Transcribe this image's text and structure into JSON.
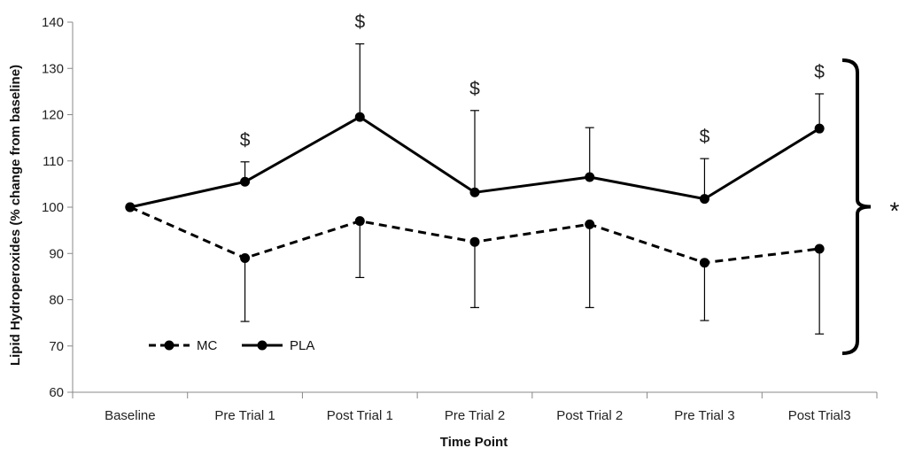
{
  "chart_data": {
    "type": "line",
    "title": "",
    "xlabel": "Time Point",
    "ylabel": "Lipid Hydroperoxides (% change from baseline)",
    "ylim": [
      60,
      140
    ],
    "y_ticks": [
      60,
      70,
      80,
      90,
      100,
      110,
      120,
      130,
      140
    ],
    "categories": [
      "Baseline",
      "Pre Trial 1",
      "Post Trial 1",
      "Pre Trial 2",
      "Post Trial 2",
      "Pre Trial 3",
      "Post Trial3"
    ],
    "grid": false,
    "legend_position": "bottom-left",
    "series": [
      {
        "name": "MC",
        "line_style": "dashed",
        "color": "#000000",
        "values": [
          100,
          89,
          97,
          92.5,
          96.3,
          88,
          91
        ],
        "error_low": [
          0,
          13.7,
          12.2,
          14.2,
          18,
          12.5,
          18.4
        ],
        "error_high": [
          0,
          0,
          0,
          0,
          0,
          0,
          0
        ]
      },
      {
        "name": "PLA",
        "line_style": "solid",
        "color": "#000000",
        "values": [
          100,
          105.5,
          119.5,
          103.2,
          106.5,
          101.8,
          117
        ],
        "error_low": [
          0,
          0,
          0,
          0,
          0,
          0,
          0
        ],
        "error_high": [
          0,
          4.3,
          15.8,
          17.7,
          10.7,
          8.7,
          7.5
        ]
      }
    ],
    "annotations": {
      "dollar_symbol": "$",
      "dollar_categories": [
        "Pre Trial 1",
        "Post Trial 1",
        "Pre Trial 2",
        "Pre Trial 3",
        "Post Trial3"
      ],
      "bracket_symbol": "*"
    }
  }
}
